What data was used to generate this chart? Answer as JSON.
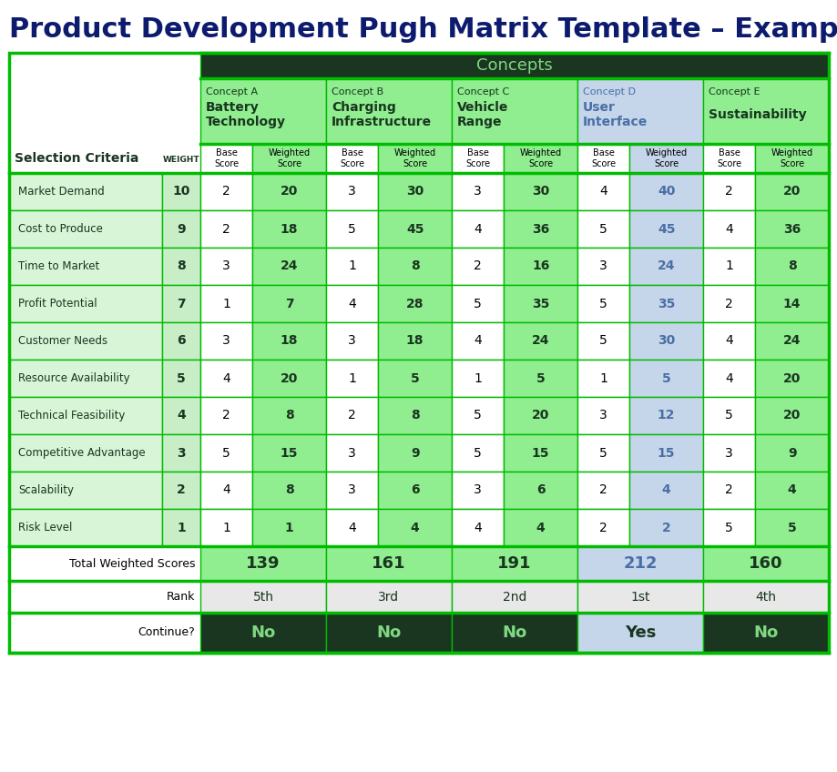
{
  "title": "Product Development Pugh Matrix Template – Example",
  "concepts": [
    {
      "name": "Concept A",
      "sub1": "Battery",
      "sub2": "Technology"
    },
    {
      "name": "Concept B",
      "sub1": "Charging",
      "sub2": "Infrastructure"
    },
    {
      "name": "Concept C",
      "sub1": "Vehicle",
      "sub2": "Range"
    },
    {
      "name": "Concept D",
      "sub1": "User",
      "sub2": "Interface"
    },
    {
      "name": "Concept E",
      "sub1": "Sustainability",
      "sub2": ""
    }
  ],
  "criteria": [
    "Market Demand",
    "Cost to Produce",
    "Time to Market",
    "Profit Potential",
    "Customer Needs",
    "Resource Availability",
    "Technical Feasibility",
    "Competitive Advantage",
    "Scalability",
    "Risk Level"
  ],
  "weights": [
    10,
    9,
    8,
    7,
    6,
    5,
    4,
    3,
    2,
    1
  ],
  "base_scores": [
    [
      2,
      3,
      3,
      4,
      2
    ],
    [
      2,
      5,
      4,
      5,
      4
    ],
    [
      3,
      1,
      2,
      3,
      1
    ],
    [
      1,
      4,
      5,
      5,
      2
    ],
    [
      3,
      3,
      4,
      5,
      4
    ],
    [
      4,
      1,
      1,
      1,
      4
    ],
    [
      2,
      2,
      5,
      3,
      5
    ],
    [
      5,
      3,
      5,
      5,
      3
    ],
    [
      4,
      3,
      3,
      2,
      2
    ],
    [
      1,
      4,
      4,
      2,
      5
    ]
  ],
  "weighted_scores": [
    [
      20,
      30,
      30,
      40,
      20
    ],
    [
      18,
      45,
      36,
      45,
      36
    ],
    [
      24,
      8,
      16,
      24,
      8
    ],
    [
      7,
      28,
      35,
      35,
      14
    ],
    [
      18,
      18,
      24,
      30,
      24
    ],
    [
      20,
      5,
      5,
      5,
      20
    ],
    [
      8,
      8,
      20,
      12,
      20
    ],
    [
      15,
      9,
      15,
      15,
      9
    ],
    [
      8,
      6,
      6,
      4,
      4
    ],
    [
      1,
      4,
      4,
      2,
      5
    ]
  ],
  "totals": [
    139,
    161,
    191,
    212,
    160
  ],
  "ranks": [
    "5th",
    "3rd",
    "2nd",
    "1st",
    "4th"
  ],
  "continue_vals": [
    "No",
    "No",
    "No",
    "Yes",
    "No"
  ],
  "concept_d_idx": 3,
  "title_color": "#0d1b6e",
  "concepts_hdr_bg": "#1a3520",
  "concepts_hdr_text": "#80d880",
  "concept_hdr_bg": "#90ee90",
  "concept_d_hdr_bg": "#c5d5ea",
  "concept_label_color": "#1a3520",
  "concept_d_label_color": "#4a6fa5",
  "criteria_bg": "#d8f5d8",
  "weight_bg": "#c8eec8",
  "data_base_bg": "#ffffff",
  "data_wtd_bg": "#90ee90",
  "data_wtd_d_bg": "#c5d5ea",
  "data_wtd_d_color": "#4a6fa5",
  "data_wtd_color": "#1a3520",
  "total_bg": "#90ee90",
  "total_d_bg": "#c5d5ea",
  "total_color": "#1a3520",
  "total_d_color": "#4a6fa5",
  "rank_bg": "#e8e8e8",
  "rank_color": "#1a3520",
  "continue_no_bg": "#1a3520",
  "continue_yes_bg": "#c5d5ea",
  "continue_no_text": "#80d880",
  "continue_yes_text": "#1a3520",
  "border_color": "#00bb00",
  "thick_border_lw": 2.5,
  "thin_border_lw": 1.0
}
